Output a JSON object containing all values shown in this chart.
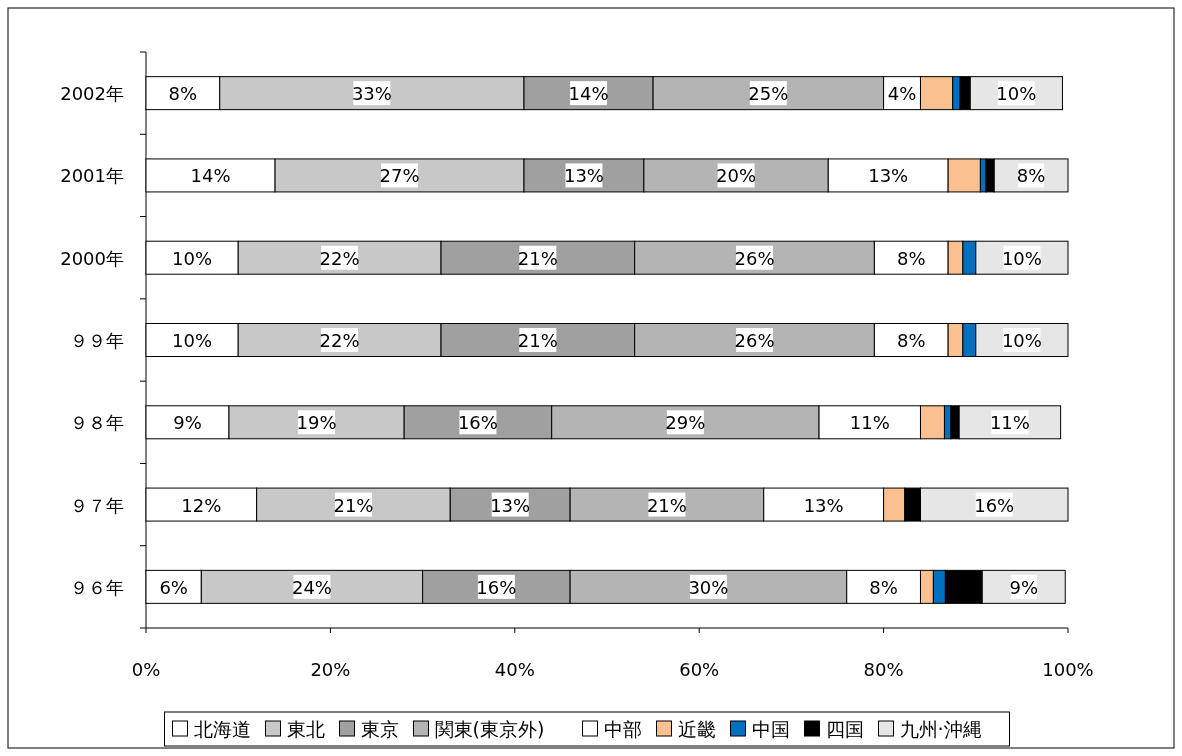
{
  "chart_data": {
    "type": "bar",
    "orientation": "horizontal",
    "stacked": true,
    "categories": [
      "2002年",
      "2001年",
      "2000年",
      "９９年",
      "９８年",
      "９７年",
      "９６年"
    ],
    "series": [
      {
        "name": "北海道",
        "color": "#ffffff",
        "values": [
          8,
          14,
          10,
          10,
          9,
          12,
          6
        ],
        "value_labels": [
          "8%",
          "14%",
          "10%",
          "10%",
          "9%",
          "12%",
          "6%"
        ]
      },
      {
        "name": "東北",
        "color": "#c8c8c8",
        "values": [
          33,
          27,
          22,
          22,
          19,
          21,
          24
        ],
        "value_labels": [
          "33%",
          "27%",
          "22%",
          "22%",
          "19%",
          "21%",
          "24%"
        ]
      },
      {
        "name": "東京",
        "color": "#a0a0a0",
        "values": [
          14,
          13,
          21,
          21,
          16,
          13,
          16
        ],
        "value_labels": [
          "14%",
          "13%",
          "21%",
          "21%",
          "16%",
          "13%",
          "16%"
        ]
      },
      {
        "name": "関東(東京外)",
        "color": "#b4b4b4",
        "values": [
          25,
          20,
          26,
          26,
          29,
          21,
          30
        ],
        "value_labels": [
          "25%",
          "20%",
          "26%",
          "26%",
          "29%",
          "21%",
          "30%"
        ]
      },
      {
        "name": "中部",
        "color": "#ffffff",
        "values": [
          4,
          13,
          8,
          8,
          11,
          13,
          8
        ],
        "value_labels": [
          "4%",
          "13%",
          "8%",
          "8%",
          "11%",
          "13%",
          "8%"
        ]
      },
      {
        "name": "近畿",
        "color": "#fac090",
        "values": [
          3.5,
          3.5,
          1.6,
          1.6,
          2.6,
          2.3,
          1.4
        ],
        "value_labels": [
          null,
          null,
          null,
          null,
          null,
          null,
          null
        ]
      },
      {
        "name": "中国",
        "color": "#0070c0",
        "values": [
          0.8,
          0.6,
          1.4,
          1.4,
          0.7,
          0,
          1.3
        ],
        "value_labels": [
          null,
          null,
          null,
          null,
          null,
          null,
          null
        ]
      },
      {
        "name": "四国",
        "color": "#000000",
        "values": [
          1.1,
          0.9,
          0,
          0,
          0.9,
          1.7,
          4
        ],
        "value_labels": [
          null,
          null,
          null,
          null,
          null,
          null,
          null
        ]
      },
      {
        "name": "九州·沖縄",
        "color": "#e6e6e6",
        "values": [
          10,
          8,
          10,
          10,
          11,
          16,
          9
        ],
        "value_labels": [
          "10%",
          "8%",
          "10%",
          "10%",
          "11%",
          "16%",
          "9%"
        ]
      }
    ],
    "xlim": [
      0,
      100
    ],
    "xticks": [
      {
        "value": 0,
        "label": "0%"
      },
      {
        "value": 20,
        "label": "20%"
      },
      {
        "value": 40,
        "label": "40%"
      },
      {
        "value": 60,
        "label": "60%"
      },
      {
        "value": 80,
        "label": "80%"
      },
      {
        "value": 100,
        "label": "100%"
      }
    ],
    "grid": false,
    "legend": "bottom"
  }
}
